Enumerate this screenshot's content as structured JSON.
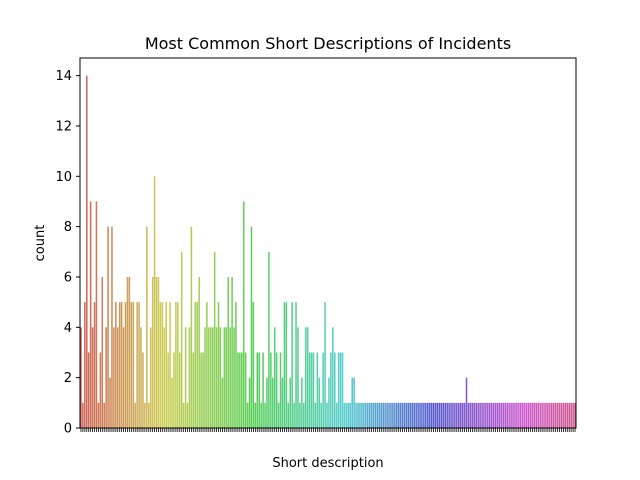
{
  "chart_data": {
    "type": "bar",
    "title": "Most Common Short Descriptions of Incidents",
    "xlabel": "Short description",
    "ylabel": "count",
    "ylim": [
      0,
      14.7
    ],
    "yticks": [
      0,
      2,
      4,
      6,
      8,
      10,
      12,
      14
    ],
    "grid": false,
    "legend": "none",
    "palette": "husl",
    "bar_count": 250,
    "values": [
      4,
      1,
      5,
      14,
      3,
      9,
      4,
      5,
      9,
      1,
      3,
      6,
      1,
      4,
      8,
      2,
      8,
      4,
      5,
      4,
      5,
      5,
      4,
      5,
      6,
      6,
      5,
      5,
      1,
      5,
      5,
      4,
      3,
      1,
      8,
      1,
      4,
      6,
      10,
      6,
      6,
      5,
      5,
      4,
      5,
      3,
      5,
      2,
      3,
      5,
      5,
      3,
      7,
      1,
      4,
      1,
      4,
      8,
      3,
      5,
      5,
      6,
      3,
      3,
      4,
      5,
      4,
      4,
      4,
      7,
      4,
      5,
      4,
      2,
      4,
      4,
      6,
      4,
      6,
      4,
      5,
      3,
      3,
      3,
      9,
      3,
      1,
      2,
      8,
      5,
      1,
      3,
      3,
      1,
      3,
      1,
      2,
      7,
      3,
      2,
      4,
      3,
      1,
      3,
      2,
      5,
      5,
      1,
      2,
      5,
      1,
      5,
      4,
      1,
      2,
      1,
      4,
      4,
      3,
      3,
      3,
      1,
      3,
      2,
      1,
      3,
      5,
      1,
      2,
      3,
      4,
      3,
      1,
      3,
      3,
      3,
      1,
      1,
      1,
      1,
      2,
      2,
      1,
      1,
      1,
      1,
      1,
      1,
      1,
      1,
      1,
      1,
      1,
      1,
      1,
      1,
      1,
      1,
      1,
      1,
      1,
      1,
      1,
      1,
      1,
      1,
      1,
      1,
      1,
      1,
      1,
      1,
      1,
      1,
      1,
      1,
      1,
      1,
      1,
      1,
      1,
      1,
      1,
      1,
      1,
      1,
      1,
      1,
      1,
      1,
      1,
      1,
      1,
      1,
      1,
      1,
      1,
      1,
      1,
      2,
      1,
      1,
      1,
      1,
      1,
      1,
      1,
      1,
      1,
      1,
      1,
      1,
      1,
      1,
      1,
      1,
      1,
      1,
      1,
      1,
      1,
      1,
      1,
      1,
      1,
      1,
      1,
      1,
      1,
      1,
      1,
      1,
      1,
      1,
      1,
      1,
      1,
      1,
      1,
      1,
      1,
      1,
      1,
      1,
      1,
      1,
      1,
      1,
      1,
      1,
      1,
      1,
      1,
      1,
      1,
      1
    ]
  }
}
